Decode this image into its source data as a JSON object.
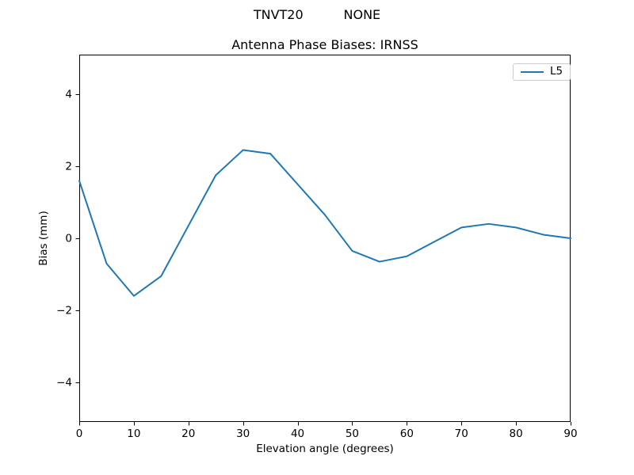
{
  "figure": {
    "suptitle": "TNVT20          NONE"
  },
  "chart_data": {
    "type": "line",
    "title": "Antenna Phase Biases: IRNSS",
    "xlabel": "Elevation angle (degrees)",
    "ylabel": "Bias (mm)",
    "xlim": [
      0,
      90
    ],
    "ylim": [
      -5.1,
      5.1
    ],
    "xticks": [
      0,
      10,
      20,
      30,
      40,
      50,
      60,
      70,
      80,
      90
    ],
    "yticks": [
      -4,
      -2,
      0,
      2,
      4
    ],
    "grid": false,
    "legend_position": "upper right",
    "series": [
      {
        "name": "L5",
        "color": "#1f77b4",
        "x": [
          0,
          5,
          10,
          15,
          20,
          25,
          30,
          35,
          40,
          45,
          50,
          55,
          60,
          65,
          70,
          75,
          80,
          85,
          90
        ],
        "y": [
          1.6,
          -0.7,
          -1.6,
          -1.05,
          0.35,
          1.75,
          2.45,
          2.35,
          1.5,
          0.65,
          -0.35,
          -0.65,
          -0.5,
          -0.1,
          0.3,
          0.4,
          0.3,
          0.1,
          0.0
        ]
      }
    ]
  },
  "colors": {
    "background": "#ffffff",
    "axes_edge": "#000000",
    "tick_text": "#000000",
    "legend_border": "#cccccc",
    "series_blue": "#1f77b4"
  }
}
